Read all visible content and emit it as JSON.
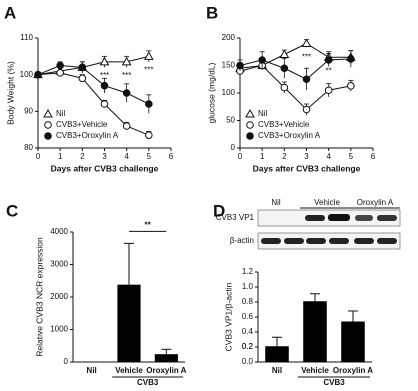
{
  "chart_data": [
    {
      "type": "line",
      "panel": "A",
      "xlabel": "Days after CVB3 challenge",
      "ylabel": "Body Weight (%)",
      "x": [
        0,
        1,
        2,
        3,
        4,
        5
      ],
      "xlim": [
        0,
        6
      ],
      "xticks": [
        0,
        1,
        2,
        3,
        4,
        5,
        6
      ],
      "ylim": [
        80,
        110
      ],
      "yticks": [
        80,
        90,
        100,
        110
      ],
      "legend": "lower left",
      "series": [
        {
          "name": "Nil",
          "color": "#111111",
          "marker": "triangle-open",
          "values": [
            100,
            101,
            102,
            103.5,
            103.5,
            105
          ],
          "errors": [
            0,
            1,
            1.5,
            1.5,
            1.5,
            1.5
          ]
        },
        {
          "name": "CVB3+Vehicle",
          "color": "#111111",
          "marker": "circle-open",
          "values": [
            100,
            100.5,
            99,
            92,
            86,
            83.5
          ],
          "errors": [
            0,
            0.5,
            1,
            1,
            1,
            1
          ]
        },
        {
          "name": "CVB3+Oroxylin A",
          "color": "#111111",
          "marker": "circle-filled",
          "values": [
            100,
            102.5,
            102,
            97,
            95,
            92
          ],
          "errors": [
            0,
            1,
            1.5,
            2,
            2.5,
            2.5
          ]
        }
      ],
      "annotations": [
        {
          "text": "***",
          "x": 3
        },
        {
          "text": "***",
          "x": 4
        },
        {
          "text": "***",
          "x": 5
        }
      ]
    },
    {
      "type": "line",
      "panel": "B",
      "xlabel": "Days after CVB3 challenge",
      "ylabel": "glucose (mg/dL)",
      "x": [
        0,
        1,
        2,
        3,
        4,
        5
      ],
      "xlim": [
        0,
        6
      ],
      "xticks": [
        0,
        1,
        2,
        3,
        4,
        5,
        6
      ],
      "ylim": [
        0,
        200
      ],
      "yticks": [
        0,
        50,
        100,
        150,
        200
      ],
      "legend": "lower left",
      "series": [
        {
          "name": "Nil",
          "color": "#111111",
          "marker": "triangle-open",
          "values": [
            145,
            150,
            170,
            190,
            165,
            165
          ],
          "errors": [
            10,
            8,
            8,
            7,
            10,
            12
          ]
        },
        {
          "name": "CVB3+Vehicle",
          "color": "#111111",
          "marker": "circle-open",
          "values": [
            140,
            150,
            110,
            70,
            105,
            113
          ],
          "errors": [
            10,
            8,
            10,
            10,
            12,
            10
          ]
        },
        {
          "name": "CVB3+Oroxylin A",
          "color": "#111111",
          "marker": "circle-filled",
          "values": [
            150,
            160,
            145,
            125,
            160,
            162
          ],
          "errors": [
            10,
            15,
            18,
            20,
            12,
            15
          ]
        }
      ],
      "annotations": [
        {
          "text": "***",
          "x": 3
        },
        {
          "text": "**",
          "x": 4
        }
      ]
    },
    {
      "type": "bar",
      "panel": "C",
      "ylabel": "Relative CVB3 NCR expression",
      "categories": [
        "Nil",
        "Vehicle",
        "Oroxylin A"
      ],
      "values": [
        0,
        2380,
        240
      ],
      "errors": [
        0,
        1270,
        150
      ],
      "color": "#000000",
      "ylim": [
        0,
        4000
      ],
      "yticks": [
        0,
        1000,
        2000,
        3000,
        4000
      ],
      "group": {
        "label": "CVB3",
        "categories": [
          "Vehicle",
          "Oroxylin A"
        ]
      },
      "significance": {
        "label": "**",
        "pair": [
          "Vehicle",
          "Oroxylin A"
        ]
      }
    },
    {
      "type": "bar",
      "panel": "D",
      "ylabel": "CVB3 VP1/β-actin",
      "categories": [
        "Nil",
        "Vehicle",
        "Oroxylin A"
      ],
      "values": [
        0.21,
        0.81,
        0.54
      ],
      "errors": [
        0.12,
        0.1,
        0.14
      ],
      "color": "#000000",
      "ylim": [
        0,
        1.2
      ],
      "yticks": [
        {
          "value": 0,
          "label": "0.0"
        },
        0.2,
        0.4,
        0.6,
        0.8,
        {
          "value": 1,
          "label": "1.0"
        },
        0.2,
        1.2
      ],
      "group": {
        "label": "CVB3",
        "categories": [
          "Vehicle",
          "Oroxylin A"
        ]
      },
      "blot": {
        "lanes": [
          "Nil",
          "Vehicle",
          "Oroxylin A"
        ],
        "rows": [
          "CVB3 VP1",
          "β-actin"
        ]
      }
    }
  ]
}
